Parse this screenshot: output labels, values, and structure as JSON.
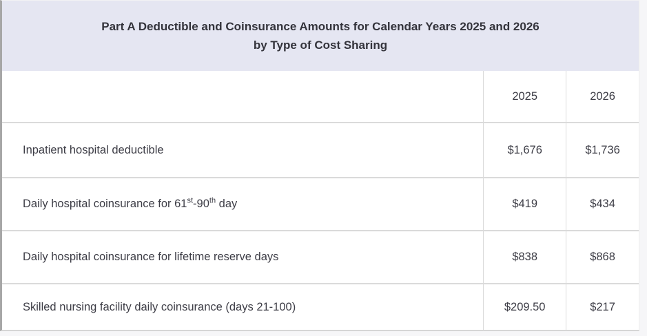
{
  "table": {
    "title_line1": "Part A Deductible and Coinsurance Amounts for Calendar Years 2025 and 2026",
    "title_line2": "by Type of Cost Sharing",
    "columns": {
      "year_2025": "2025",
      "year_2026": "2026"
    },
    "rows": [
      {
        "label": "Inpatient hospital deductible",
        "y2025": "$1,676",
        "y2026": "$1,736"
      },
      {
        "label_prefix": "Daily hospital coinsurance for 61",
        "sup1": "st",
        "label_mid": "-90",
        "sup2": "th",
        "label_suffix": " day",
        "y2025": "$419",
        "y2026": "$434"
      },
      {
        "label": "Daily hospital coinsurance for lifetime reserve days",
        "y2025": "$838",
        "y2026": "$868"
      },
      {
        "label": "Skilled nursing facility daily coinsurance (days 21-100)",
        "y2025": "$209.50",
        "y2026": "$217"
      }
    ],
    "colors": {
      "title_background": "#e5e6f2",
      "grid_border": "#dadada",
      "left_edge": "#a7a7a7",
      "text": "#3d3d46"
    }
  }
}
